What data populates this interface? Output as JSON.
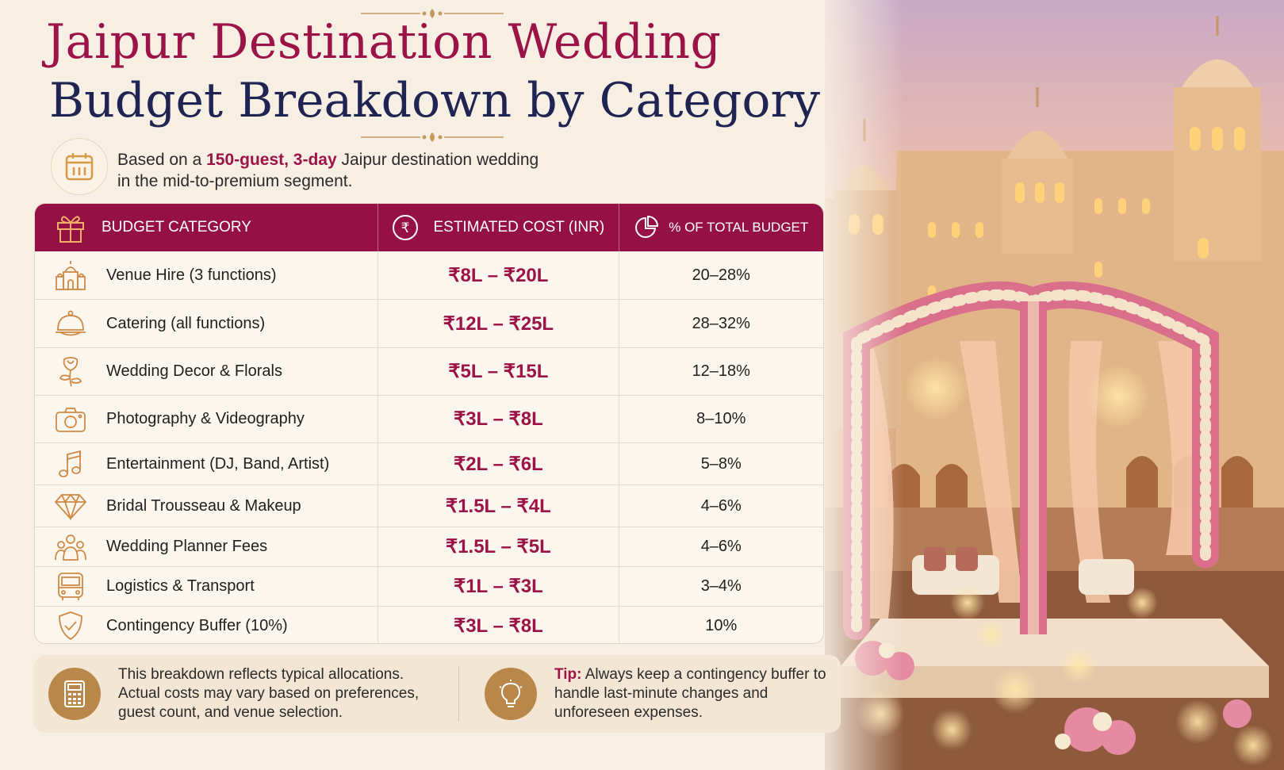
{
  "title": {
    "line1": "Jaipur Destination Wedding",
    "line2": "Budget Breakdown by Category"
  },
  "intro": {
    "prefix": "Based on a ",
    "highlight": "150-guest, 3-day",
    "suffix": " Jaipur destination wedding",
    "line2": "in the mid-to-premium segment."
  },
  "table": {
    "headers": {
      "category": "BUDGET CATEGORY",
      "cost": "ESTIMATED COST (INR)",
      "percent": "% OF TOTAL BUDGET"
    },
    "rows": [
      {
        "label": "Venue Hire",
        "note": " (3 functions)",
        "cost": "₹8L – ₹20L",
        "percent": "20–28%",
        "icon": "palace-icon"
      },
      {
        "label": "Catering",
        "note": " (all functions)",
        "cost": "₹12L – ₹25L",
        "percent": "28–32%",
        "icon": "cloche-icon"
      },
      {
        "label": "Wedding Decor & Florals",
        "note": "",
        "cost": "₹5L – ₹15L",
        "percent": "12–18%",
        "icon": "rose-icon"
      },
      {
        "label": "Photography & Videography",
        "note": "",
        "cost": "₹3L – ₹8L",
        "percent": "8–10%",
        "icon": "camera-icon"
      },
      {
        "label": "Entertainment",
        "note": " (DJ, Band, Artist)",
        "cost": "₹2L – ₹6L",
        "percent": "5–8%",
        "icon": "music-note-icon"
      },
      {
        "label": "Bridal Trousseau & Makeup",
        "note": "",
        "cost": "₹1.5L – ₹4L",
        "percent": "4–6%",
        "icon": "diamond-icon"
      },
      {
        "label": "Wedding Planner Fees",
        "note": "",
        "cost": "₹1.5L – ₹5L",
        "percent": "4–6%",
        "icon": "people-icon"
      },
      {
        "label": "Logistics & Transport",
        "note": "",
        "cost": "₹1L – ₹3L",
        "percent": "3–4%",
        "icon": "bus-icon"
      },
      {
        "label": "Contingency Buffer",
        "note": " (10%)",
        "cost": "₹3L – ₹8L",
        "percent": "10%",
        "icon": "shield-check-icon"
      }
    ]
  },
  "footer": {
    "note": "This breakdown reflects typical allocations. Actual costs may vary based on preferences, guest count, and venue selection.",
    "tip_label": "Tip:",
    "tip_text": " Always keep a contingency buffer to handle last-minute changes and unforeseen expenses."
  },
  "colors": {
    "accent": "#9b1347",
    "header_bg": "#951044",
    "navy": "#1f2452",
    "gold": "#b9874a",
    "cream": "#f8efe4"
  }
}
